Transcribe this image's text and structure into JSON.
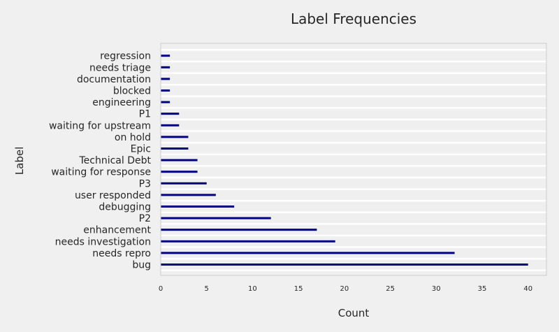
{
  "chart_data": {
    "type": "bar",
    "orientation": "horizontal",
    "title": "Label Frequencies",
    "xlabel": "Count",
    "ylabel": "Label",
    "categories": [
      "bug",
      "needs repro",
      "needs investigation",
      "enhancement",
      "P2",
      "debugging",
      "user responded",
      "P3",
      "waiting for response",
      "Technical Debt",
      "Epic",
      "on hold",
      "waiting for upstream",
      "P1",
      "engineering",
      "blocked",
      "documentation",
      "needs triage",
      "regression"
    ],
    "values": [
      40,
      32,
      19,
      17,
      12,
      8,
      6,
      5,
      4,
      4,
      3,
      3,
      2,
      2,
      1,
      1,
      1,
      1,
      1
    ],
    "xlim": [
      0,
      42
    ],
    "xticks": [
      0,
      5,
      10,
      15,
      20,
      25,
      30,
      35,
      40
    ],
    "grid": "horizontal",
    "bar_color": "#000080",
    "background_color": "#f0f0f0",
    "plot_background_color": "#efefef"
  }
}
